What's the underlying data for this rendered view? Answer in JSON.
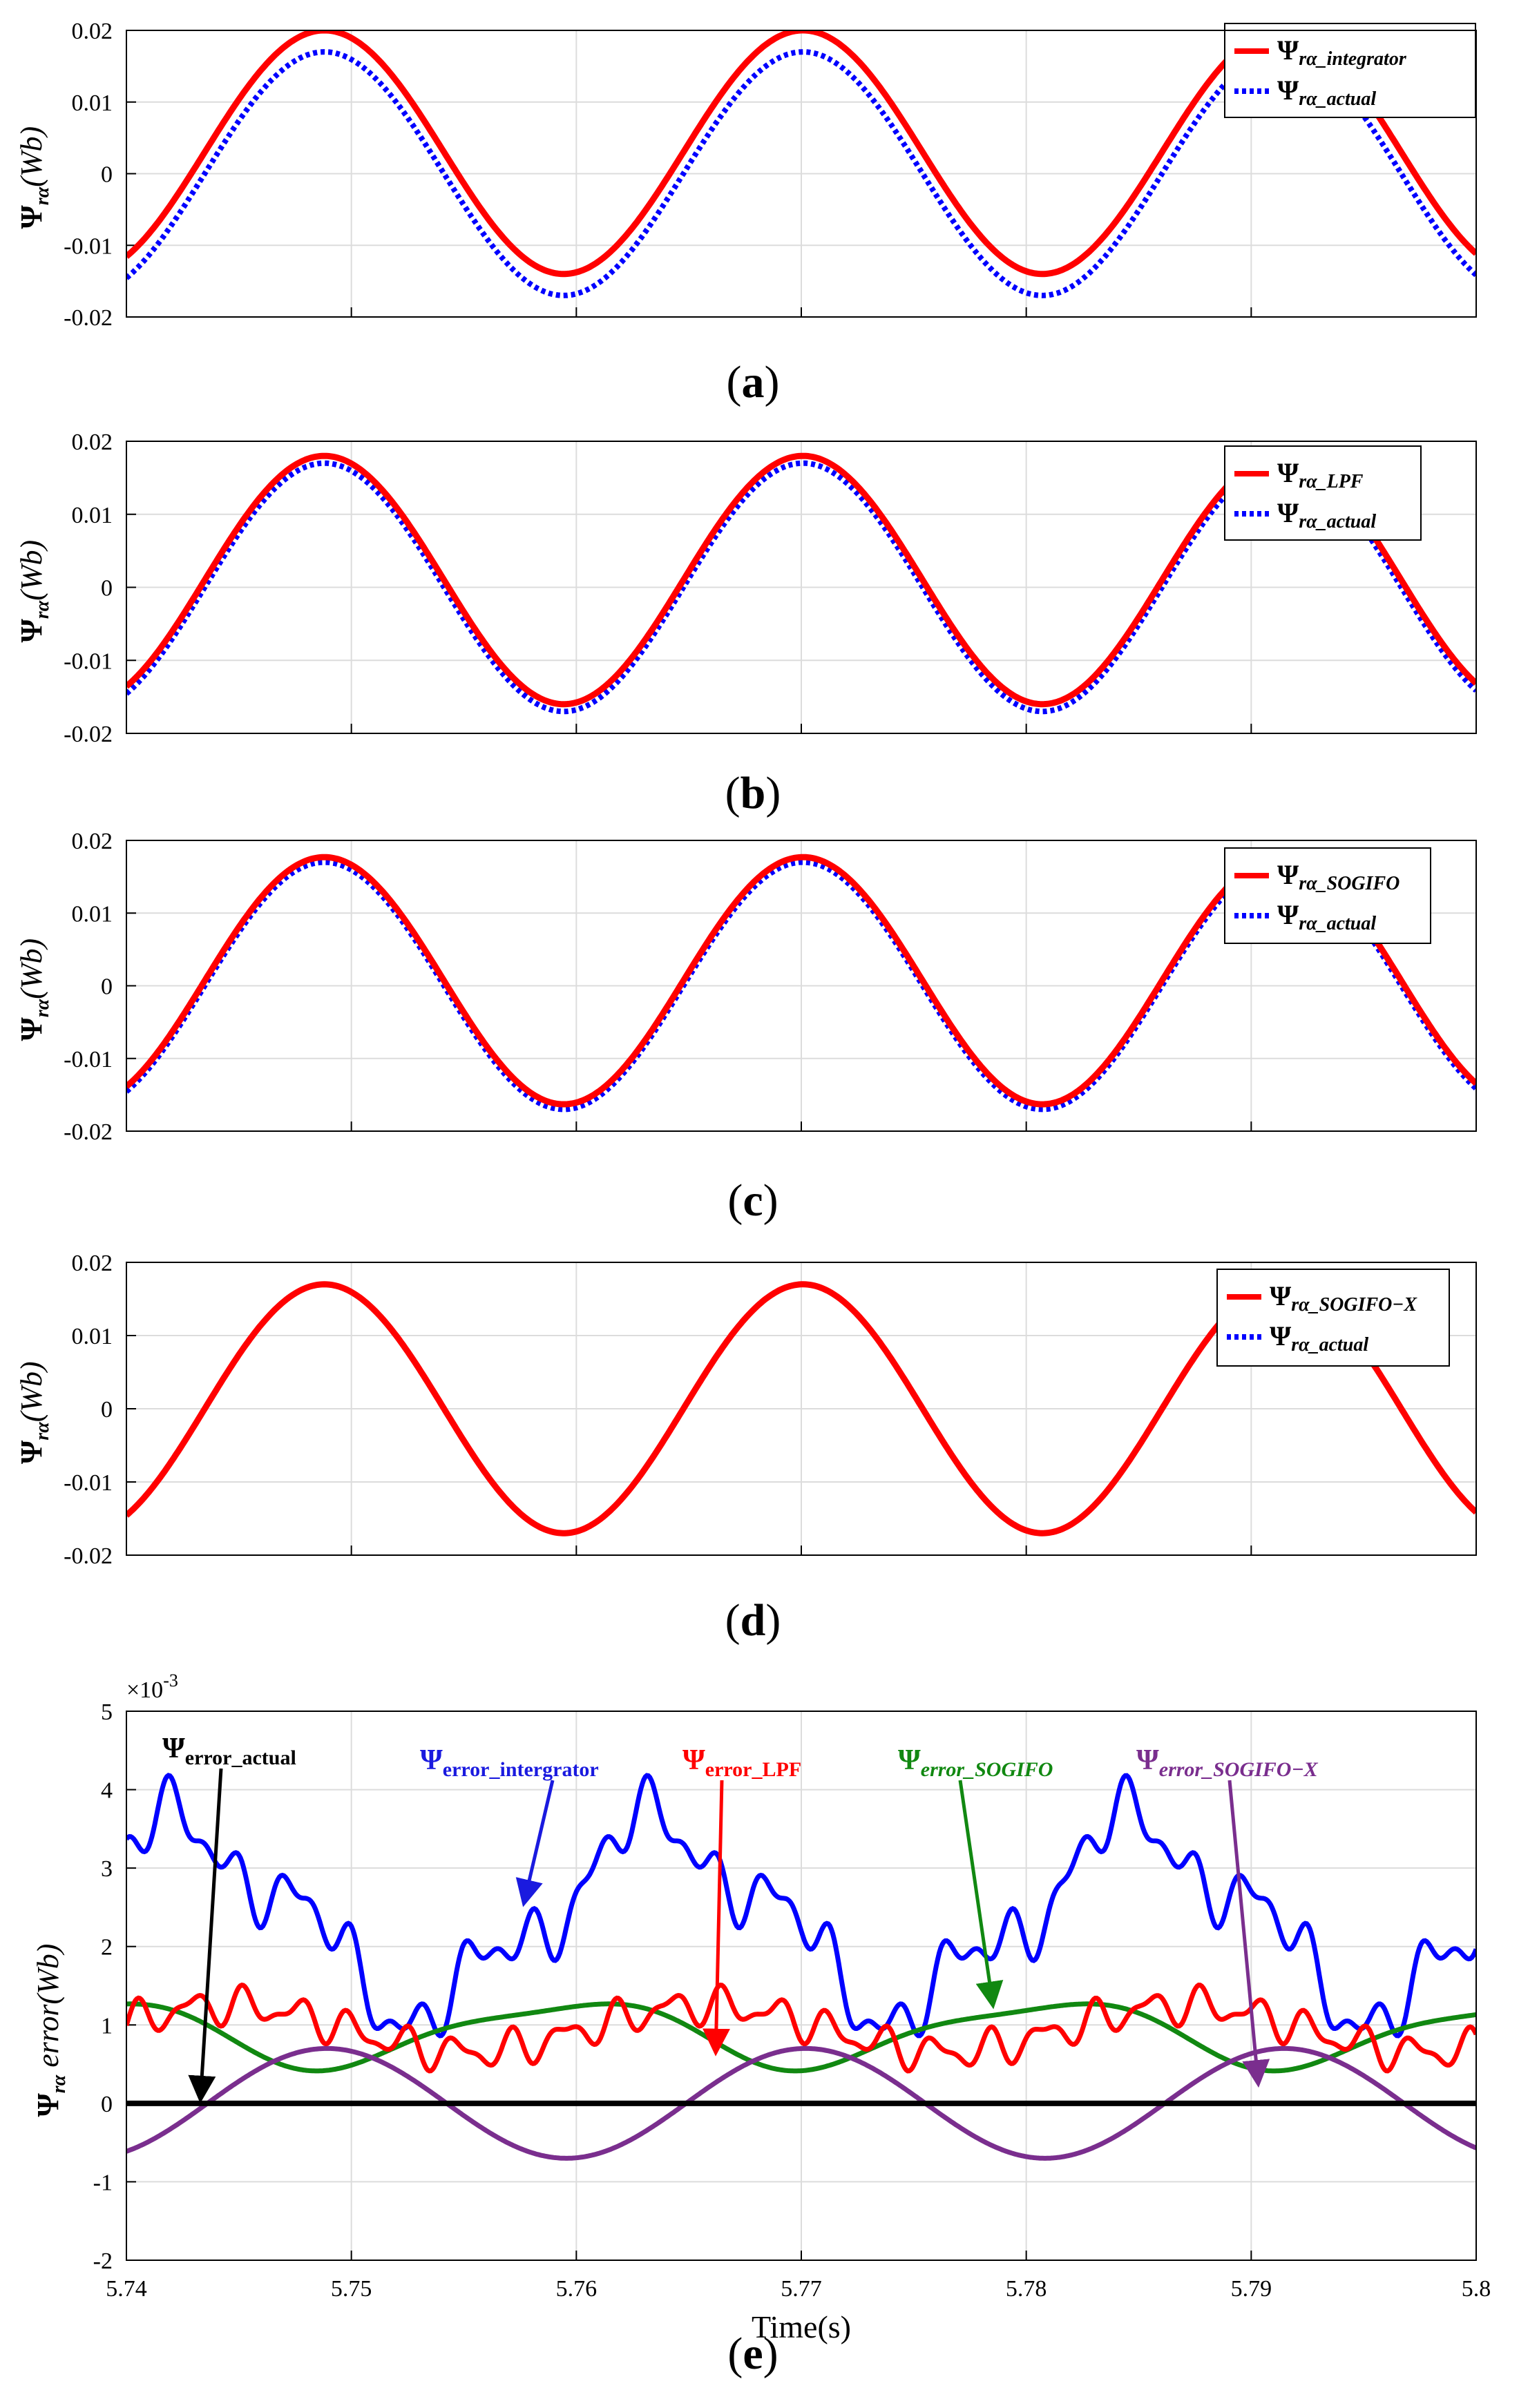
{
  "colors": {
    "red": "#ff0000",
    "blue": "#0000ff",
    "green": "#118811",
    "purple": "#7a2e8e",
    "black": "#000000",
    "blue_dark": "#1a1adf"
  },
  "chart_data": [
    {
      "type": "line",
      "panel": "a",
      "caption": "a",
      "ylabel": "Ψrα(Wb)",
      "ylim": [
        -0.02,
        0.02
      ],
      "yticks": [
        "0.02",
        "0.01",
        "0",
        "-0.01",
        "-0.02"
      ],
      "ytick_values": [
        0.02,
        0.01,
        0,
        -0.01,
        -0.02
      ],
      "xlim": [
        5.74,
        5.8
      ],
      "frequency_hz": 47,
      "series": [
        {
          "name": "Ψrα_integrator",
          "legend_main": "Ψ",
          "legend_sub": "rα_integrator",
          "color": "#ff0000",
          "style": "solid",
          "amplitude": 0.017,
          "offset": 0.003
        },
        {
          "name": "Ψrα_actual",
          "legend_main": "Ψ",
          "legend_sub": "rα_actual",
          "color": "#0000ff",
          "style": "dotted",
          "amplitude": 0.017,
          "offset": 0.0
        }
      ]
    },
    {
      "type": "line",
      "panel": "b",
      "caption": "b",
      "ylabel": "Ψrα(Wb)",
      "ylim": [
        -0.02,
        0.02
      ],
      "yticks": [
        "0.02",
        "0.01",
        "0",
        "-0.01",
        "-0.02"
      ],
      "ytick_values": [
        0.02,
        0.01,
        0,
        -0.01,
        -0.02
      ],
      "xlim": [
        5.74,
        5.8
      ],
      "frequency_hz": 47,
      "series": [
        {
          "name": "Ψrα_LPF",
          "legend_main": "Ψ",
          "legend_sub": "rα_LPF",
          "color": "#ff0000",
          "style": "solid",
          "amplitude": 0.017,
          "offset": 0.001
        },
        {
          "name": "Ψrα_actual",
          "legend_main": "Ψ",
          "legend_sub": "rα_actual",
          "color": "#0000ff",
          "style": "dotted",
          "amplitude": 0.017,
          "offset": 0.0
        }
      ]
    },
    {
      "type": "line",
      "panel": "c",
      "caption": "c",
      "ylabel": "Ψrα(Wb)",
      "ylim": [
        -0.02,
        0.02
      ],
      "yticks": [
        "0.02",
        "0.01",
        "0",
        "-0.01",
        "-0.02"
      ],
      "ytick_values": [
        0.02,
        0.01,
        0,
        -0.01,
        -0.02
      ],
      "xlim": [
        5.74,
        5.8
      ],
      "frequency_hz": 47,
      "series": [
        {
          "name": "Ψrα_SOGIFO",
          "legend_main": "Ψ",
          "legend_sub": "rα_SOGIFO",
          "color": "#ff0000",
          "style": "solid",
          "amplitude": 0.017,
          "offset": 0.0007
        },
        {
          "name": "Ψrα_actual",
          "legend_main": "Ψ",
          "legend_sub": "rα_actual",
          "color": "#0000ff",
          "style": "dotted",
          "amplitude": 0.017,
          "offset": 0.0
        }
      ]
    },
    {
      "type": "line",
      "panel": "d",
      "caption": "d",
      "ylabel": "Ψrα(Wb)",
      "ylim": [
        -0.02,
        0.02
      ],
      "yticks": [
        "0.02",
        "0.01",
        "0",
        "-0.01",
        "-0.02"
      ],
      "ytick_values": [
        0.02,
        0.01,
        0,
        -0.01,
        -0.02
      ],
      "xlim": [
        5.74,
        5.8
      ],
      "frequency_hz": 47,
      "series": [
        {
          "name": "Ψrα_SOGIFO−X",
          "legend_main": "Ψ",
          "legend_sub": "rα_SOGIFO−X",
          "color": "#ff0000",
          "style": "solid",
          "amplitude": 0.017,
          "offset": 0.0
        },
        {
          "name": "Ψrα_actual",
          "legend_main": "Ψ",
          "legend_sub": "rα_actual",
          "color": "#0000ff",
          "style": "dotted",
          "amplitude": 0.017,
          "offset": 0.0
        }
      ]
    },
    {
      "type": "line",
      "panel": "e",
      "caption": "e",
      "ylabel": "Ψrα error(Wb)",
      "ylabel_main": "Ψ",
      "ylabel_sub": "rα",
      "ylabel_rest": "error(Wb)",
      "xlabel": "Time(s)",
      "yscale_label": "×10",
      "yscale_exp": "-3",
      "ylim": [
        -2,
        5
      ],
      "yticks": [
        "5",
        "4",
        "3",
        "2",
        "1",
        "0",
        "-1",
        "-2"
      ],
      "ytick_values": [
        5,
        4,
        3,
        2,
        1,
        0,
        -1,
        -2
      ],
      "xlim": [
        5.74,
        5.8
      ],
      "xticks": [
        "5.74",
        "5.75",
        "5.76",
        "5.77",
        "5.78",
        "5.79",
        "5.8"
      ],
      "xtick_values": [
        5.74,
        5.75,
        5.76,
        5.77,
        5.78,
        5.79,
        5.8
      ],
      "series": [
        {
          "name": "Ψerror_actual",
          "color": "#000000",
          "mean": 0.0,
          "amplitude": 0.0
        },
        {
          "name": "Ψerror_intergrator",
          "color": "#0000ff",
          "mean": 2.6,
          "amplitude": 1.3
        },
        {
          "name": "Ψerror_LPF",
          "color": "#ff0000",
          "mean": 0.95,
          "amplitude": 0.35
        },
        {
          "name": "Ψerror_SOGIFO",
          "color": "#118811",
          "mean": 0.85,
          "amplitude": 0.42
        },
        {
          "name": "Ψerror_SOGIFO−X",
          "color": "#7a2e8e",
          "mean": 0.0,
          "amplitude": 0.7
        }
      ],
      "annotations": [
        {
          "main": "Ψ",
          "sub": "error_actual",
          "color": "#000000",
          "target_x": 5.7433,
          "target_y": 0
        },
        {
          "main": "Ψ",
          "sub": "error_intergrator",
          "color": "#1a1adf",
          "target_x": 5.7577,
          "target_y": 2.5
        },
        {
          "main": "Ψ",
          "sub": "error_LPF",
          "color": "#ff0000",
          "target_x": 5.7662,
          "target_y": 0.6
        },
        {
          "main": "Ψ",
          "sub": "error_SOGIFO",
          "color": "#118811",
          "target_x": 5.7785,
          "target_y": 1.2
        },
        {
          "main": "Ψ",
          "sub": "error_SOGIFO−X",
          "color": "#7a2e8e",
          "target_x": 5.7903,
          "target_y": 0.2
        }
      ]
    }
  ]
}
